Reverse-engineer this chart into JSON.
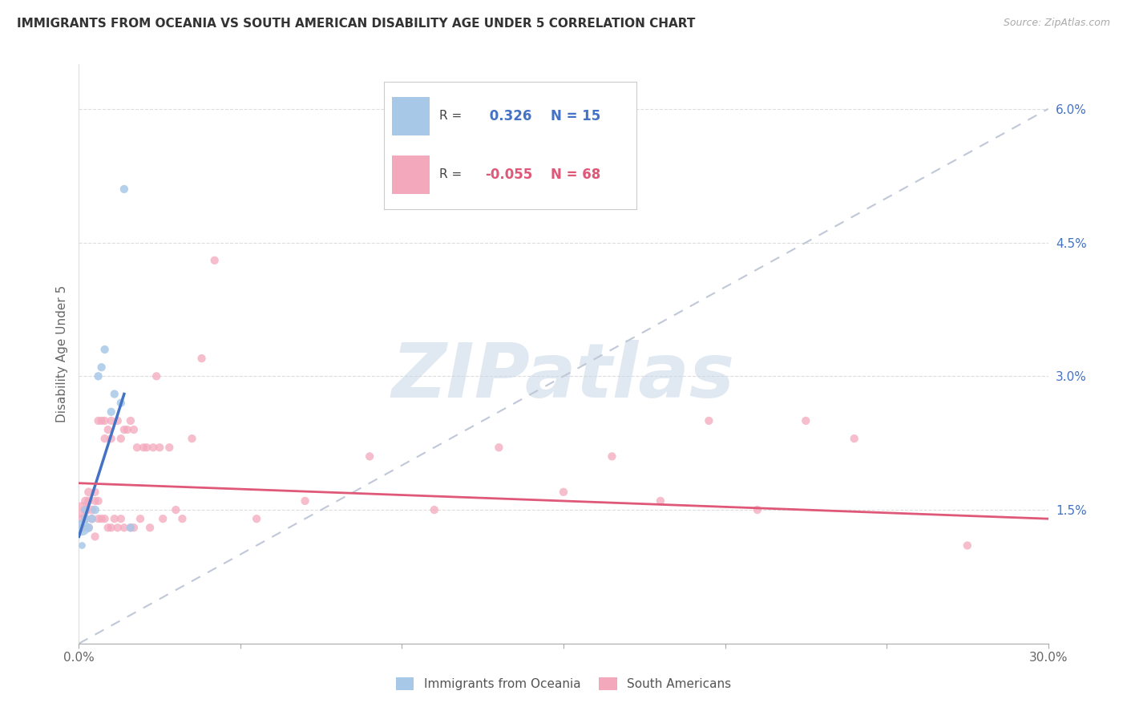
{
  "title": "IMMIGRANTS FROM OCEANIA VS SOUTH AMERICAN DISABILITY AGE UNDER 5 CORRELATION CHART",
  "source": "Source: ZipAtlas.com",
  "ylabel": "Disability Age Under 5",
  "legend1_label": "Immigrants from Oceania",
  "legend2_label": "South Americans",
  "r1": 0.326,
  "n1": 15,
  "r2": -0.055,
  "n2": 68,
  "color_oceania": "#a8c8e8",
  "color_sa": "#f4a8bc",
  "color_oceania_line": "#4472c4",
  "color_sa_line": "#e05878",
  "color_ref_line": "#c0c8d8",
  "oceania_x": [
    0.001,
    0.001,
    0.002,
    0.002,
    0.003,
    0.004,
    0.005,
    0.006,
    0.007,
    0.008,
    0.01,
    0.011,
    0.013,
    0.014,
    0.016
  ],
  "oceania_y": [
    0.013,
    0.011,
    0.014,
    0.015,
    0.013,
    0.014,
    0.015,
    0.03,
    0.031,
    0.033,
    0.026,
    0.028,
    0.027,
    0.051,
    0.013
  ],
  "oceania_sizes": [
    200,
    40,
    60,
    50,
    60,
    55,
    60,
    55,
    55,
    55,
    55,
    55,
    55,
    55,
    55
  ],
  "sa_x": [
    0.001,
    0.001,
    0.001,
    0.002,
    0.002,
    0.002,
    0.002,
    0.003,
    0.003,
    0.003,
    0.004,
    0.004,
    0.005,
    0.005,
    0.005,
    0.006,
    0.006,
    0.006,
    0.007,
    0.007,
    0.008,
    0.008,
    0.008,
    0.009,
    0.009,
    0.01,
    0.01,
    0.01,
    0.011,
    0.012,
    0.012,
    0.013,
    0.013,
    0.014,
    0.014,
    0.015,
    0.016,
    0.016,
    0.017,
    0.017,
    0.018,
    0.019,
    0.02,
    0.021,
    0.022,
    0.023,
    0.024,
    0.025,
    0.026,
    0.028,
    0.03,
    0.032,
    0.035,
    0.038,
    0.042,
    0.055,
    0.07,
    0.09,
    0.11,
    0.13,
    0.15,
    0.165,
    0.18,
    0.195,
    0.21,
    0.225,
    0.24,
    0.275
  ],
  "sa_y": [
    0.015,
    0.014,
    0.013,
    0.015,
    0.014,
    0.016,
    0.015,
    0.013,
    0.016,
    0.017,
    0.014,
    0.015,
    0.016,
    0.012,
    0.017,
    0.014,
    0.025,
    0.016,
    0.025,
    0.014,
    0.023,
    0.014,
    0.025,
    0.013,
    0.024,
    0.025,
    0.013,
    0.023,
    0.014,
    0.025,
    0.013,
    0.023,
    0.014,
    0.024,
    0.013,
    0.024,
    0.025,
    0.013,
    0.024,
    0.013,
    0.022,
    0.014,
    0.022,
    0.022,
    0.013,
    0.022,
    0.03,
    0.022,
    0.014,
    0.022,
    0.015,
    0.014,
    0.023,
    0.032,
    0.043,
    0.014,
    0.016,
    0.021,
    0.015,
    0.022,
    0.017,
    0.021,
    0.016,
    0.025,
    0.015,
    0.025,
    0.023,
    0.011
  ],
  "sa_sizes": [
    200,
    60,
    60,
    60,
    60,
    60,
    60,
    60,
    60,
    60,
    60,
    60,
    55,
    55,
    55,
    55,
    55,
    55,
    55,
    55,
    55,
    55,
    55,
    55,
    55,
    55,
    55,
    55,
    55,
    55,
    55,
    55,
    55,
    55,
    55,
    55,
    55,
    55,
    55,
    55,
    55,
    55,
    55,
    55,
    55,
    55,
    55,
    55,
    55,
    55,
    55,
    55,
    55,
    55,
    55,
    55,
    55,
    55,
    55,
    55,
    55,
    55,
    55,
    55,
    55,
    55,
    55,
    55
  ],
  "blue_line_x": [
    0.0,
    0.014
  ],
  "blue_line_y": [
    0.012,
    0.028
  ],
  "pink_line_x": [
    0.0,
    0.3
  ],
  "pink_line_y": [
    0.018,
    0.014
  ],
  "ref_line_x": [
    0.0,
    0.3
  ],
  "ref_line_y": [
    0.0,
    0.06
  ],
  "xlim": [
    0.0,
    0.3
  ],
  "ylim": [
    0.0,
    0.065
  ],
  "x_ticks": [
    0.0,
    0.05,
    0.1,
    0.15,
    0.2,
    0.25,
    0.3
  ],
  "x_tick_labels": [
    "0.0%",
    "",
    "",
    "",
    "",
    "",
    "30.0%"
  ],
  "y_ticks": [
    0.0,
    0.015,
    0.03,
    0.045,
    0.06
  ],
  "y_tick_labels": [
    "",
    "1.5%",
    "3.0%",
    "4.5%",
    "6.0%"
  ],
  "watermark": "ZIPatlas",
  "background_color": "#ffffff"
}
